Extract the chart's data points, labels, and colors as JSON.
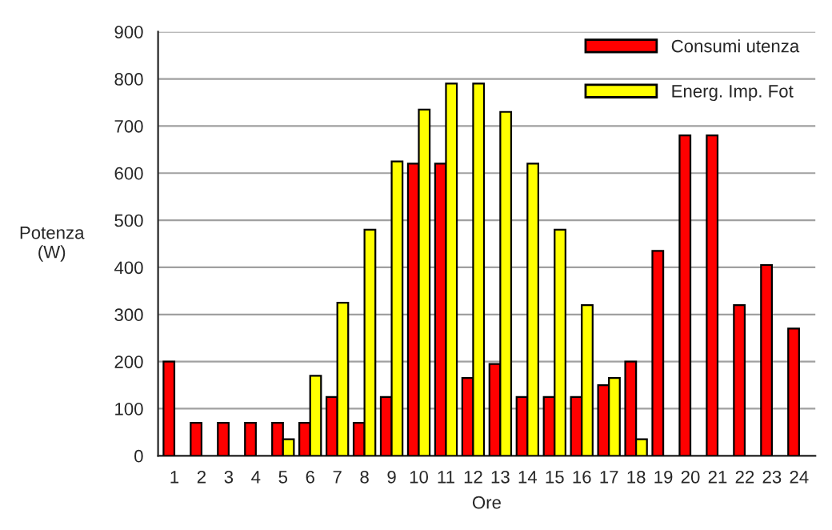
{
  "chart_data": {
    "type": "bar",
    "xlabel": "Ore",
    "ylabel": "Potenza\n(W)",
    "categories": [
      "1",
      "2",
      "3",
      "4",
      "5",
      "6",
      "7",
      "8",
      "9",
      "10",
      "11",
      "12",
      "13",
      "14",
      "15",
      "16",
      "17",
      "18",
      "19",
      "20",
      "21",
      "22",
      "23",
      "24"
    ],
    "series": [
      {
        "name": "Consumi utenza",
        "color": "#ff0000",
        "values": [
          200,
          70,
          70,
          70,
          70,
          70,
          125,
          70,
          125,
          620,
          620,
          165,
          195,
          125,
          125,
          125,
          150,
          200,
          435,
          680,
          680,
          320,
          405,
          270
        ]
      },
      {
        "name": "Energ. Imp. Fot",
        "color": "#ffff00",
        "values": [
          null,
          null,
          null,
          null,
          35,
          170,
          325,
          480,
          625,
          735,
          790,
          790,
          730,
          620,
          480,
          320,
          165,
          35,
          null,
          null,
          null,
          null,
          null,
          null
        ]
      }
    ],
    "ylim": [
      0,
      900
    ],
    "yticks": [
      0,
      100,
      200,
      300,
      400,
      500,
      600,
      700,
      800,
      900
    ],
    "grid": "y",
    "legend": "top right"
  }
}
